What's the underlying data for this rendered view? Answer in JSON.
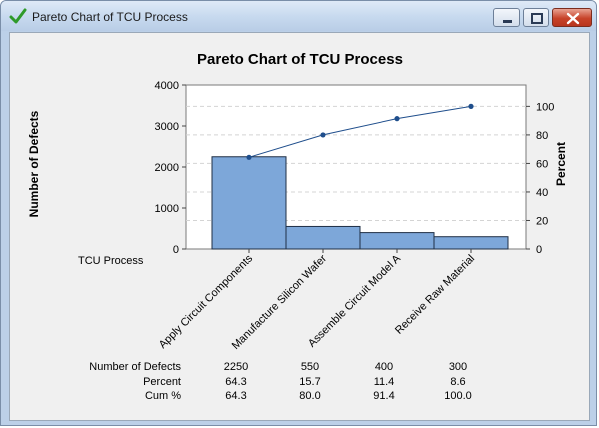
{
  "window": {
    "title": "Pareto Chart of TCU Process",
    "icons": {
      "app": "green-check-icon",
      "minimize": "minimize-icon",
      "maximize": "maximize-icon",
      "close": "close-icon"
    }
  },
  "chart_data": {
    "type": "bar",
    "title": "Pareto Chart of TCU Process",
    "xlabel": "TCU Process",
    "ylabel": "Number of Defects",
    "y2label": "Percent",
    "categories": [
      "Apply Circuit Components",
      "Manufacture Silicon Wafer",
      "Assemble Circuit Model A",
      "Receive Raw Material"
    ],
    "ylim": [
      0,
      4000
    ],
    "y2lim": [
      0,
      115
    ],
    "yticks": [
      "0",
      "1000",
      "2000",
      "3000",
      "4000"
    ],
    "y2ticks": [
      "0",
      "20",
      "40",
      "60",
      "80",
      "100"
    ],
    "grid": true,
    "series": [
      {
        "type": "bar",
        "values": [
          2250,
          550,
          400,
          300
        ]
      },
      {
        "type": "line",
        "values": [
          64.3,
          80.0,
          91.4,
          100.0
        ]
      }
    ],
    "colors": {
      "bar": "#7da7d9",
      "bar_edge": "#1f2f45",
      "line": "#1f4e8c",
      "grid": "#d4d4d4"
    }
  },
  "table": {
    "rows": [
      {
        "label": "Number of Defects",
        "values": [
          "2250",
          "550",
          "400",
          "300"
        ]
      },
      {
        "label": "Percent",
        "values": [
          "64.3",
          "15.7",
          "11.4",
          "8.6"
        ]
      },
      {
        "label": "Cum %",
        "values": [
          "64.3",
          "80.0",
          "91.4",
          "100.0"
        ]
      }
    ]
  }
}
